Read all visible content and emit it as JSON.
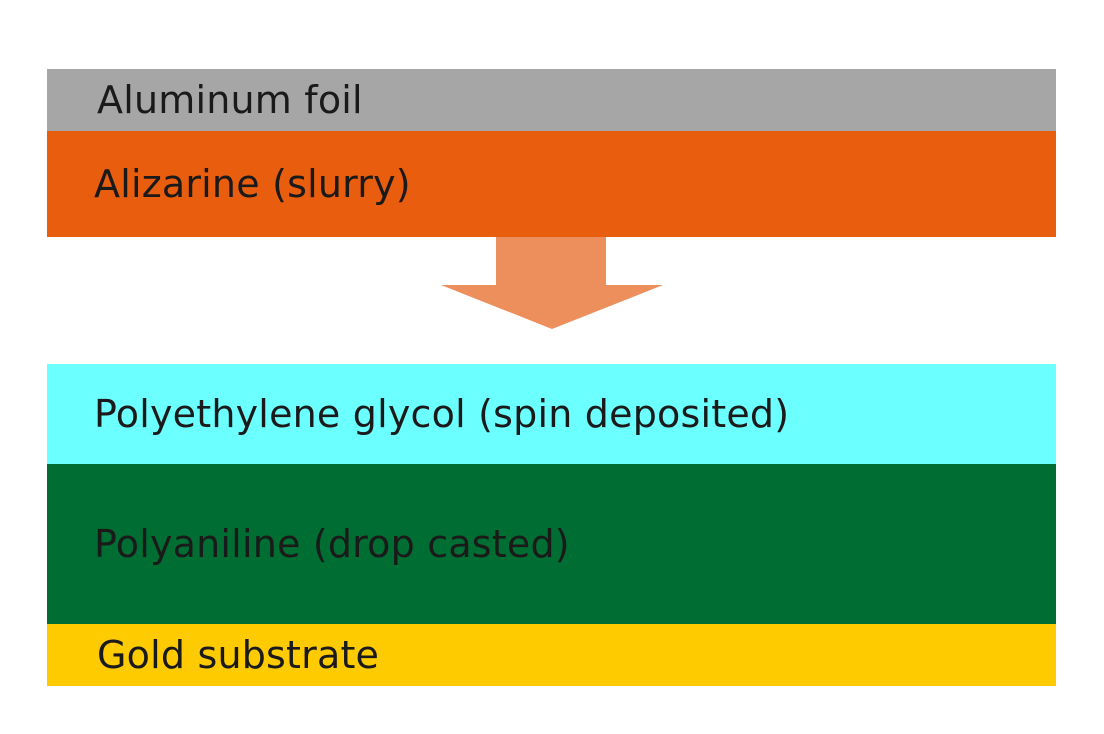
{
  "diagram": {
    "top_stack": {
      "layers": [
        {
          "label": "Aluminum foil",
          "color": "#a6a6a6"
        },
        {
          "label": "Alizarine (slurry)",
          "color": "#e85d0e"
        }
      ]
    },
    "arrow": {
      "direction": "down",
      "color": "#ec8f5c",
      "icon": "down-arrow-icon"
    },
    "bottom_stack": {
      "layers": [
        {
          "label": "Polyethylene glycol (spin deposited)",
          "color": "#6cffff"
        },
        {
          "label": "Polyaniline (drop casted)",
          "color": "#006e32"
        },
        {
          "label": "Gold substrate",
          "color": "#fecb00"
        }
      ]
    }
  }
}
